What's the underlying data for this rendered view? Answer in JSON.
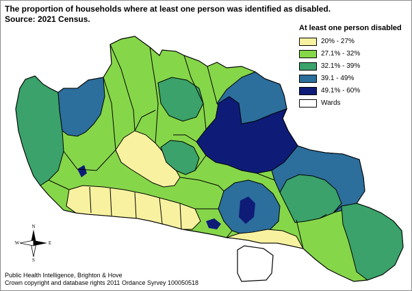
{
  "title": {
    "line1": "The proportion of households where at least one person was identified as disabled.",
    "line2": "Source: 2021 Census."
  },
  "legend": {
    "title": "At least one person disabled",
    "items": [
      {
        "label": "20% - 27%",
        "color": "#f8f2a0"
      },
      {
        "label": "27.1% - 32%",
        "color": "#86d64a"
      },
      {
        "label": "32.1% - 39%",
        "color": "#3aa26a"
      },
      {
        "label": "39.1 - 49%",
        "color": "#2c6e9c"
      },
      {
        "label": "49.1% - 60%",
        "color": "#0e1c78"
      },
      {
        "label": "Wards",
        "color": "#ffffff"
      }
    ]
  },
  "compass": {
    "north": "N",
    "south": "S",
    "east": "E",
    "west": "W"
  },
  "credits": {
    "line1": "Public Health Intelligence, Brighton & Hove",
    "line2": "Crown copyright and database rights 2011 Ordance Syrvey 100050518"
  },
  "colors": {
    "band1": "#f8f2a0",
    "band2": "#86d64a",
    "band3": "#3aa26a",
    "band4": "#2c6e9c",
    "band5": "#0e1c78",
    "ward_line": "#000000"
  }
}
